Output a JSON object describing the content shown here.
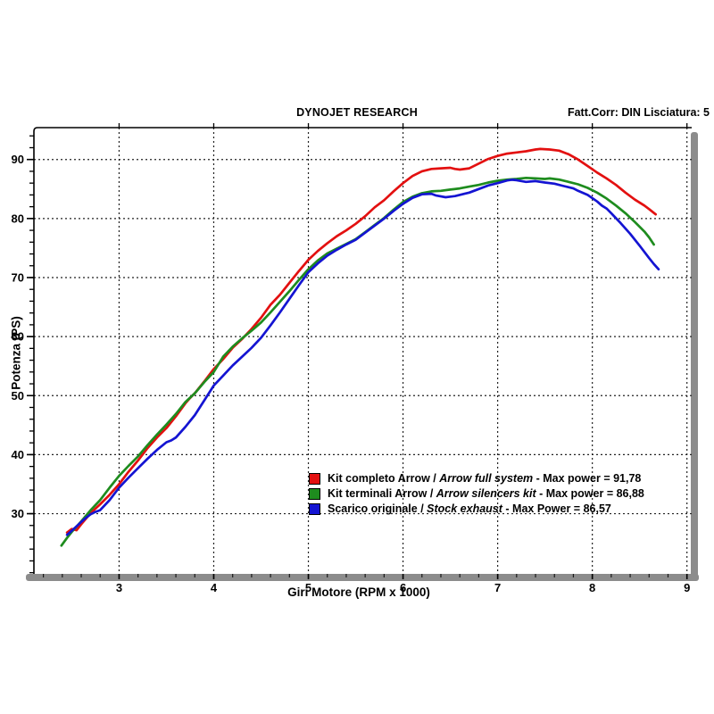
{
  "header": {
    "title": "DYNOJET RESEARCH",
    "correction_info": "Fatt.Corr: DIN  Lisciatura: 5"
  },
  "axes": {
    "y_title": "Potenza (PS)",
    "x_title": "Giri Motore (RPM x 1000)"
  },
  "legend": {
    "items": [
      {
        "prefix": "Kit completo Arrow / ",
        "italic": "Arrow full system",
        "suffix": " - Max power = 91,78",
        "color": "#e31010"
      },
      {
        "prefix": "Kit terminali Arrow / ",
        "italic": "Arrow silencers kit",
        "suffix": " - Max power = 86,88",
        "color": "#1e8c1e"
      },
      {
        "prefix": "Scarico originale / ",
        "italic": "Stock exhaust",
        "suffix": " - Max Power = 86,57",
        "color": "#1414d2"
      }
    ]
  },
  "chart_data": {
    "type": "line",
    "title": "DYNOJET RESEARCH",
    "xlabel": "Giri Motore (RPM x 1000)",
    "ylabel": "Potenza (PS)",
    "xlim": [
      2.1,
      9.05
    ],
    "ylim": [
      19.8,
      95.4
    ],
    "xticks_major": [
      3,
      4,
      5,
      6,
      7,
      8,
      9
    ],
    "xtick_minor_step": 0.2,
    "yticks_major": [
      30,
      40,
      50,
      60,
      70,
      80,
      90
    ],
    "ytick_minor_step": 2,
    "grid": "dashed lines at major ticks, both axes",
    "legend_position": "inside, lower middle",
    "colors": {
      "grid": "#222222",
      "frame": "#000000",
      "axis_bar": "#8c8c8c",
      "background": "#ffffff"
    },
    "series": [
      {
        "name": "Kit completo Arrow / Arrow full system",
        "max_power": "91,78",
        "max_power_rpm_x1000": 7.45,
        "color": "#e31010",
        "points": [
          [
            2.45,
            26.8
          ],
          [
            2.5,
            27.4
          ],
          [
            2.55,
            27.2
          ],
          [
            2.6,
            28.2
          ],
          [
            2.7,
            30.1
          ],
          [
            2.8,
            31.6
          ],
          [
            2.9,
            33.2
          ],
          [
            3.0,
            35.0
          ],
          [
            3.1,
            37.1
          ],
          [
            3.2,
            39.0
          ],
          [
            3.3,
            41.1
          ],
          [
            3.4,
            42.9
          ],
          [
            3.5,
            44.5
          ],
          [
            3.6,
            46.5
          ],
          [
            3.7,
            48.7
          ],
          [
            3.75,
            49.6
          ],
          [
            3.8,
            50.4
          ],
          [
            3.9,
            52.4
          ],
          [
            4.0,
            54.5
          ],
          [
            4.1,
            56.2
          ],
          [
            4.2,
            58.1
          ],
          [
            4.3,
            59.6
          ],
          [
            4.4,
            61.3
          ],
          [
            4.5,
            63.2
          ],
          [
            4.6,
            65.4
          ],
          [
            4.7,
            67.1
          ],
          [
            4.8,
            69.1
          ],
          [
            4.9,
            71.1
          ],
          [
            5.0,
            73.0
          ],
          [
            5.1,
            74.5
          ],
          [
            5.2,
            75.8
          ],
          [
            5.3,
            77.0
          ],
          [
            5.4,
            78.0
          ],
          [
            5.5,
            79.1
          ],
          [
            5.6,
            80.4
          ],
          [
            5.7,
            81.9
          ],
          [
            5.8,
            83.1
          ],
          [
            5.9,
            84.6
          ],
          [
            6.0,
            86.0
          ],
          [
            6.1,
            87.2
          ],
          [
            6.2,
            88.0
          ],
          [
            6.3,
            88.4
          ],
          [
            6.4,
            88.5
          ],
          [
            6.5,
            88.6
          ],
          [
            6.55,
            88.4
          ],
          [
            6.6,
            88.3
          ],
          [
            6.7,
            88.5
          ],
          [
            6.8,
            89.3
          ],
          [
            6.9,
            90.1
          ],
          [
            7.0,
            90.6
          ],
          [
            7.1,
            91.0
          ],
          [
            7.2,
            91.2
          ],
          [
            7.3,
            91.4
          ],
          [
            7.4,
            91.7
          ],
          [
            7.45,
            91.78
          ],
          [
            7.55,
            91.7
          ],
          [
            7.65,
            91.5
          ],
          [
            7.75,
            90.9
          ],
          [
            7.85,
            90.0
          ],
          [
            7.95,
            88.9
          ],
          [
            8.05,
            87.8
          ],
          [
            8.15,
            86.8
          ],
          [
            8.25,
            85.7
          ],
          [
            8.35,
            84.4
          ],
          [
            8.45,
            83.2
          ],
          [
            8.55,
            82.2
          ],
          [
            8.6,
            81.6
          ],
          [
            8.67,
            80.7
          ]
        ]
      },
      {
        "name": "Kit terminali Arrow / Arrow silencers kit",
        "max_power": "86,88",
        "max_power_rpm_x1000": 7.3,
        "color": "#1e8c1e",
        "points": [
          [
            2.39,
            24.6
          ],
          [
            2.45,
            25.9
          ],
          [
            2.5,
            26.9
          ],
          [
            2.6,
            28.7
          ],
          [
            2.7,
            30.6
          ],
          [
            2.8,
            32.3
          ],
          [
            2.9,
            34.4
          ],
          [
            3.0,
            36.4
          ],
          [
            3.1,
            38.1
          ],
          [
            3.2,
            39.7
          ],
          [
            3.3,
            41.6
          ],
          [
            3.4,
            43.4
          ],
          [
            3.5,
            45.1
          ],
          [
            3.6,
            46.9
          ],
          [
            3.7,
            48.9
          ],
          [
            3.8,
            50.4
          ],
          [
            3.9,
            52.3
          ],
          [
            4.0,
            54.0
          ],
          [
            4.1,
            56.6
          ],
          [
            4.2,
            58.3
          ],
          [
            4.3,
            59.7
          ],
          [
            4.4,
            61.0
          ],
          [
            4.5,
            62.4
          ],
          [
            4.6,
            64.1
          ],
          [
            4.7,
            65.9
          ],
          [
            4.8,
            67.7
          ],
          [
            4.9,
            69.6
          ],
          [
            5.0,
            71.4
          ],
          [
            5.1,
            72.9
          ],
          [
            5.2,
            74.1
          ],
          [
            5.3,
            74.9
          ],
          [
            5.4,
            75.7
          ],
          [
            5.5,
            76.5
          ],
          [
            5.6,
            77.7
          ],
          [
            5.7,
            78.9
          ],
          [
            5.8,
            80.1
          ],
          [
            5.9,
            81.5
          ],
          [
            6.0,
            82.8
          ],
          [
            6.1,
            83.7
          ],
          [
            6.2,
            84.3
          ],
          [
            6.3,
            84.6
          ],
          [
            6.4,
            84.7
          ],
          [
            6.5,
            84.9
          ],
          [
            6.6,
            85.1
          ],
          [
            6.7,
            85.4
          ],
          [
            6.8,
            85.7
          ],
          [
            6.9,
            86.1
          ],
          [
            7.0,
            86.4
          ],
          [
            7.1,
            86.6
          ],
          [
            7.2,
            86.7
          ],
          [
            7.3,
            86.88
          ],
          [
            7.4,
            86.8
          ],
          [
            7.5,
            86.7
          ],
          [
            7.55,
            86.8
          ],
          [
            7.65,
            86.6
          ],
          [
            7.75,
            86.2
          ],
          [
            7.85,
            85.8
          ],
          [
            7.95,
            85.2
          ],
          [
            8.05,
            84.4
          ],
          [
            8.15,
            83.4
          ],
          [
            8.25,
            82.2
          ],
          [
            8.35,
            80.9
          ],
          [
            8.45,
            79.4
          ],
          [
            8.55,
            77.8
          ],
          [
            8.6,
            76.8
          ],
          [
            8.65,
            75.6
          ]
        ]
      },
      {
        "name": "Scarico originale / Stock exhaust",
        "max_power": "86,57",
        "max_power_rpm_x1000": 7.15,
        "color": "#1414d2",
        "points": [
          [
            2.45,
            26.4
          ],
          [
            2.5,
            27.1
          ],
          [
            2.6,
            28.6
          ],
          [
            2.65,
            29.3
          ],
          [
            2.7,
            29.9
          ],
          [
            2.75,
            30.3
          ],
          [
            2.8,
            30.6
          ],
          [
            2.9,
            32.3
          ],
          [
            3.0,
            34.4
          ],
          [
            3.1,
            36.1
          ],
          [
            3.2,
            37.7
          ],
          [
            3.3,
            39.3
          ],
          [
            3.4,
            40.8
          ],
          [
            3.5,
            42.1
          ],
          [
            3.55,
            42.4
          ],
          [
            3.6,
            42.9
          ],
          [
            3.7,
            44.7
          ],
          [
            3.8,
            46.7
          ],
          [
            3.9,
            49.2
          ],
          [
            4.0,
            51.7
          ],
          [
            4.1,
            53.4
          ],
          [
            4.2,
            55.1
          ],
          [
            4.3,
            56.6
          ],
          [
            4.4,
            58.1
          ],
          [
            4.5,
            59.8
          ],
          [
            4.6,
            61.9
          ],
          [
            4.7,
            64.1
          ],
          [
            4.8,
            66.4
          ],
          [
            4.9,
            68.7
          ],
          [
            5.0,
            70.9
          ],
          [
            5.1,
            72.4
          ],
          [
            5.2,
            73.7
          ],
          [
            5.3,
            74.7
          ],
          [
            5.4,
            75.6
          ],
          [
            5.5,
            76.4
          ],
          [
            5.6,
            77.6
          ],
          [
            5.7,
            78.8
          ],
          [
            5.8,
            80.0
          ],
          [
            5.9,
            81.3
          ],
          [
            6.0,
            82.5
          ],
          [
            6.1,
            83.5
          ],
          [
            6.2,
            84.1
          ],
          [
            6.3,
            84.2
          ],
          [
            6.35,
            83.9
          ],
          [
            6.45,
            83.6
          ],
          [
            6.55,
            83.8
          ],
          [
            6.65,
            84.2
          ],
          [
            6.7,
            84.4
          ],
          [
            6.8,
            85.0
          ],
          [
            6.9,
            85.6
          ],
          [
            7.0,
            86.0
          ],
          [
            7.1,
            86.45
          ],
          [
            7.15,
            86.57
          ],
          [
            7.2,
            86.5
          ],
          [
            7.3,
            86.2
          ],
          [
            7.4,
            86.35
          ],
          [
            7.5,
            86.1
          ],
          [
            7.6,
            85.9
          ],
          [
            7.7,
            85.5
          ],
          [
            7.8,
            85.1
          ],
          [
            7.85,
            84.7
          ],
          [
            7.95,
            84.0
          ],
          [
            8.05,
            82.9
          ],
          [
            8.1,
            82.2
          ],
          [
            8.15,
            81.7
          ],
          [
            8.2,
            80.9
          ],
          [
            8.3,
            79.2
          ],
          [
            8.4,
            77.4
          ],
          [
            8.5,
            75.4
          ],
          [
            8.6,
            73.3
          ],
          [
            8.65,
            72.3
          ],
          [
            8.7,
            71.4
          ]
        ]
      }
    ]
  }
}
